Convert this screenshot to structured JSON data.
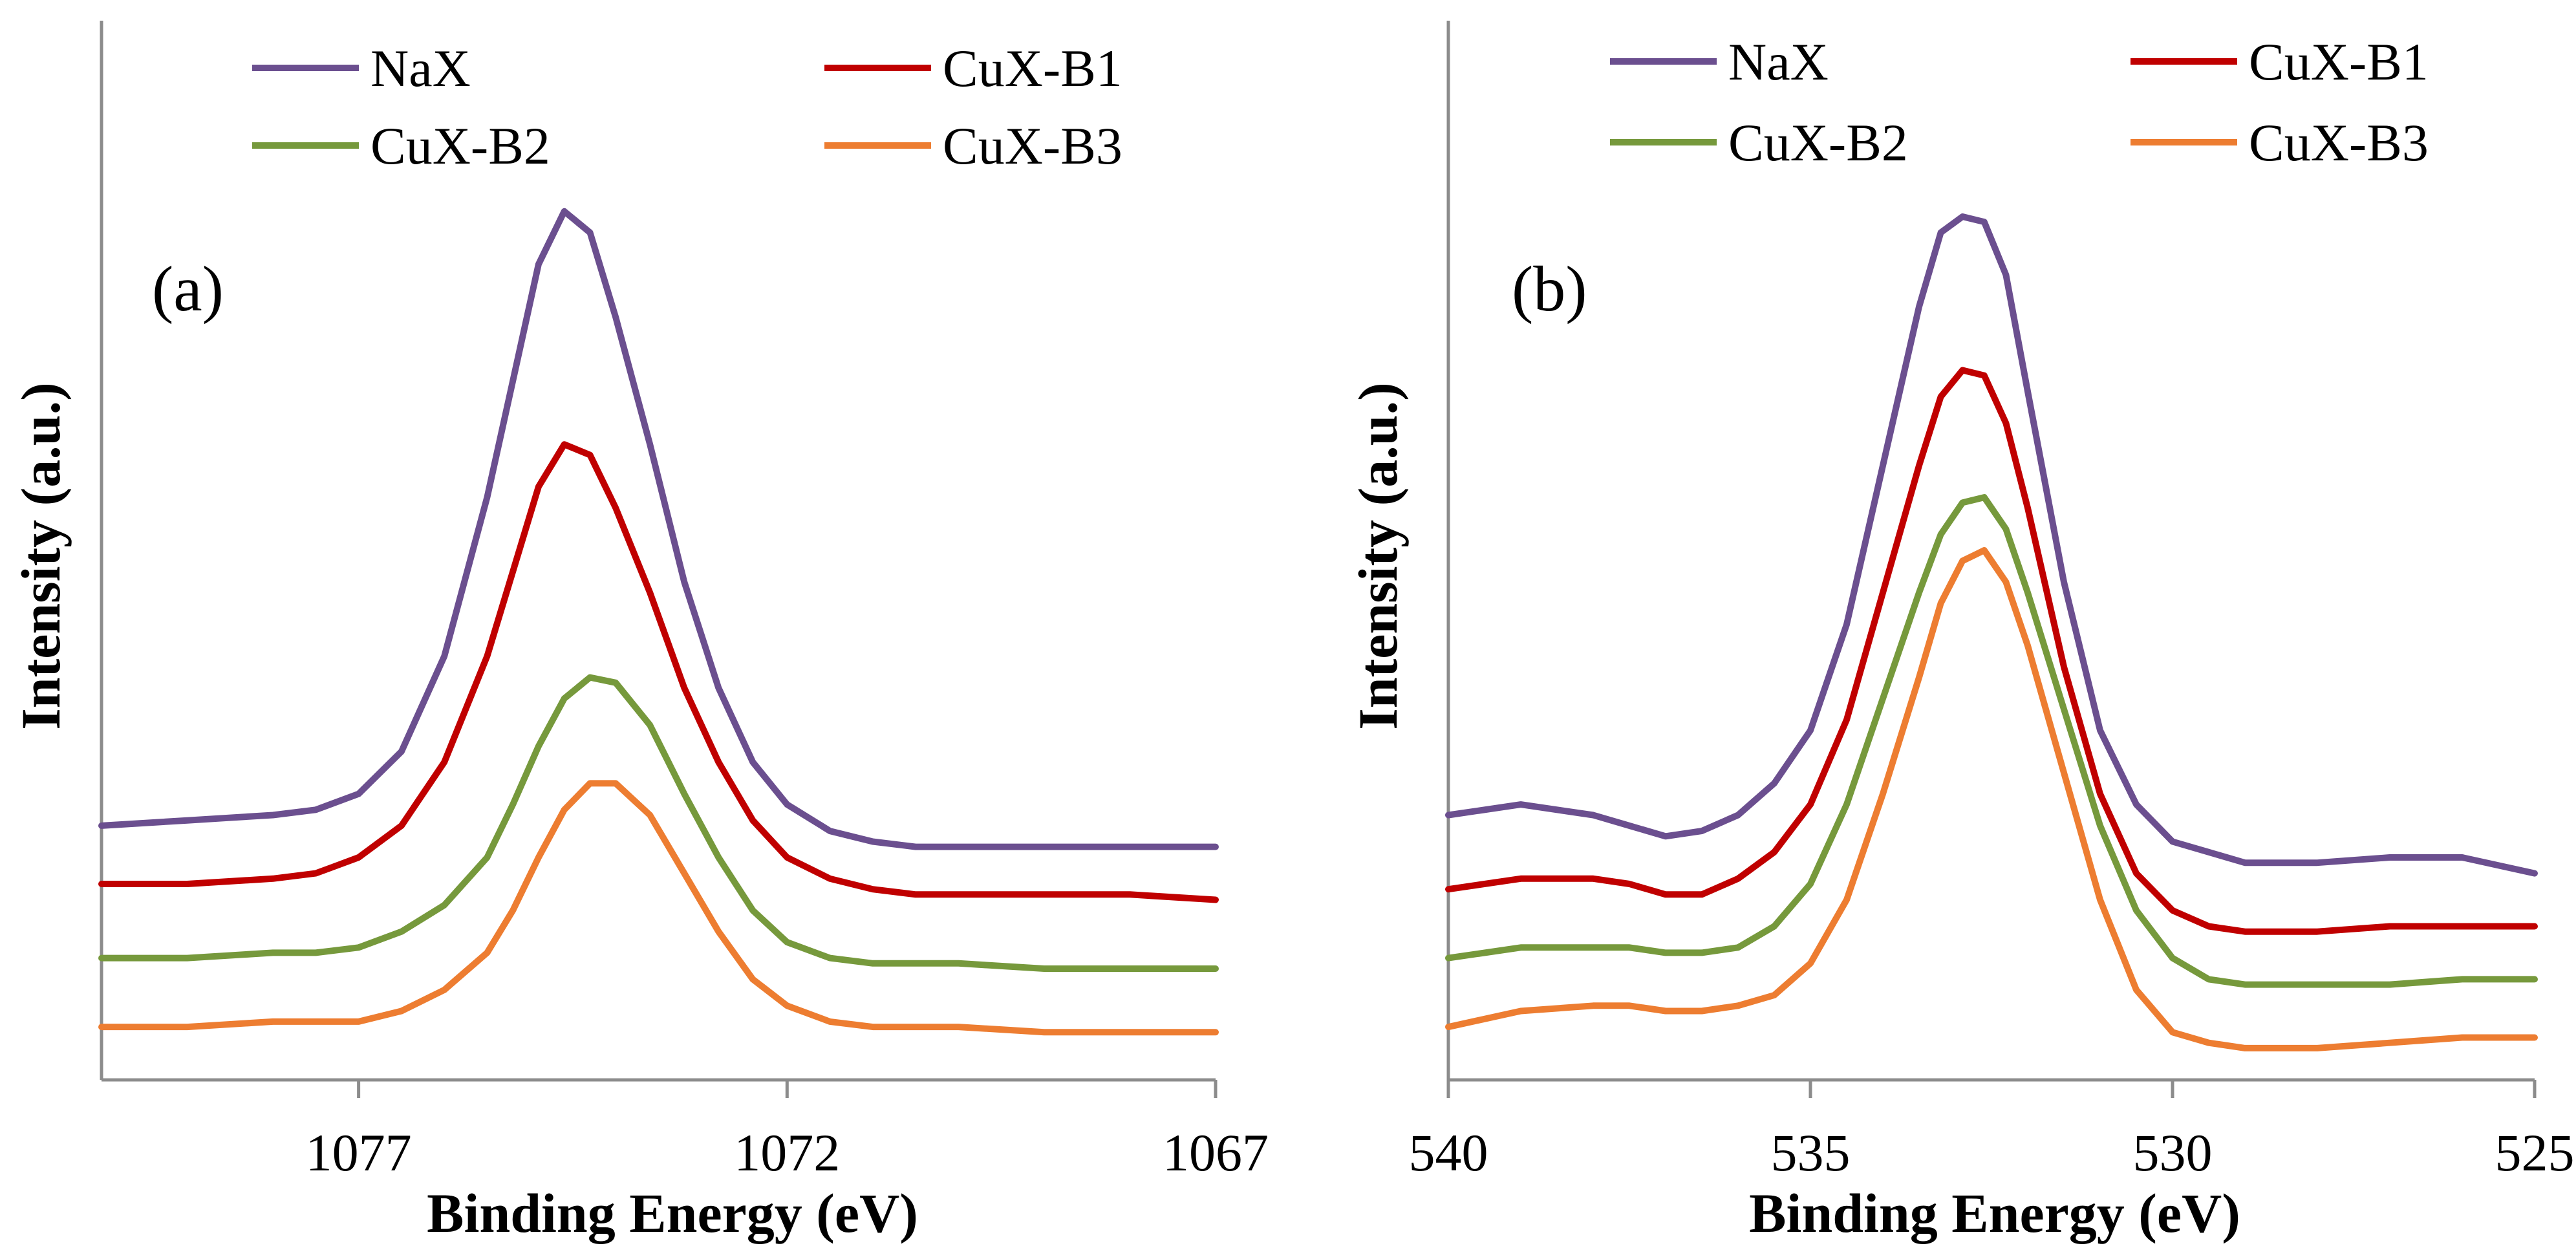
{
  "chart_data": [
    {
      "type": "line",
      "panel_label": "(a)",
      "xlabel": "Binding Energy (eV)",
      "ylabel": "Intensity (a.u.)",
      "xlim": [
        1080,
        1067
      ],
      "x_reversed": true,
      "ylim": [
        0,
        100
      ],
      "y_ticks_shown": false,
      "x_tick_values": [
        1077,
        1072,
        1067
      ],
      "x_tick_labels": [
        "1077",
        "1072",
        "1067"
      ],
      "legend": {
        "placement": "top",
        "columns": 2
      },
      "series": [
        {
          "name": "NaX",
          "color": "#6b4f8f",
          "x": [
            1080,
            1079,
            1078,
            1077.5,
            1077,
            1076.5,
            1076,
            1075.5,
            1075.2,
            1074.9,
            1074.6,
            1074.3,
            1074.0,
            1073.6,
            1073.2,
            1072.8,
            1072.4,
            1072.0,
            1071.5,
            1071.0,
            1070.5,
            1070,
            1069,
            1068,
            1067
          ],
          "y": [
            24,
            24.5,
            25,
            25.5,
            27,
            31,
            40,
            55,
            66,
            77,
            82,
            80,
            72,
            60,
            47,
            37,
            30,
            26,
            23.5,
            22.5,
            22,
            22,
            22,
            22,
            22
          ]
        },
        {
          "name": "CuX-B1",
          "color": "#c00000",
          "x": [
            1080,
            1079,
            1078,
            1077.5,
            1077,
            1076.5,
            1076,
            1075.5,
            1075.2,
            1074.9,
            1074.6,
            1074.3,
            1074.0,
            1073.6,
            1073.2,
            1072.8,
            1072.4,
            1072.0,
            1071.5,
            1071.0,
            1070.5,
            1070,
            1069,
            1068,
            1067
          ],
          "y": [
            18.5,
            18.5,
            19,
            19.5,
            21,
            24,
            30,
            40,
            48,
            56,
            60,
            59,
            54,
            46,
            37,
            30,
            24.5,
            21,
            19,
            18,
            17.5,
            17.5,
            17.5,
            17.5,
            17
          ]
        },
        {
          "name": "CuX-B2",
          "color": "#76993c",
          "x": [
            1080,
            1079,
            1078,
            1077.5,
            1077,
            1076.5,
            1076,
            1075.5,
            1075.2,
            1074.9,
            1074.6,
            1074.3,
            1074.0,
            1073.6,
            1073.2,
            1072.8,
            1072.4,
            1072.0,
            1071.5,
            1071.0,
            1070.5,
            1070,
            1069,
            1068,
            1067
          ],
          "y": [
            11.5,
            11.5,
            12,
            12,
            12.5,
            14,
            16.5,
            21,
            26,
            31.5,
            36,
            38,
            37.5,
            33.5,
            27,
            21,
            16,
            13,
            11.5,
            11,
            11,
            11,
            10.5,
            10.5,
            10.5
          ]
        },
        {
          "name": "CuX-B3",
          "color": "#ed7d31",
          "x": [
            1080,
            1079,
            1078,
            1077.5,
            1077,
            1076.5,
            1076,
            1075.5,
            1075.2,
            1074.9,
            1074.6,
            1074.3,
            1074.0,
            1073.6,
            1073.2,
            1072.8,
            1072.4,
            1072.0,
            1071.5,
            1071.0,
            1070.5,
            1070,
            1069,
            1068,
            1067
          ],
          "y": [
            5,
            5,
            5.5,
            5.5,
            5.5,
            6.5,
            8.5,
            12,
            16,
            21,
            25.5,
            28,
            28,
            25,
            19.5,
            14,
            9.5,
            7,
            5.5,
            5,
            5,
            5,
            4.5,
            4.5,
            4.5
          ]
        }
      ]
    },
    {
      "type": "line",
      "panel_label": "(b)",
      "xlabel": "Binding Energy (eV)",
      "ylabel": "Intensity (a.u.)",
      "xlim": [
        540,
        525
      ],
      "x_reversed": true,
      "ylim": [
        0,
        100
      ],
      "y_ticks_shown": false,
      "x_tick_values": [
        540,
        535,
        530,
        525
      ],
      "x_tick_labels": [
        "540",
        "535",
        "530",
        "525"
      ],
      "legend": {
        "placement": "top",
        "columns": 2
      },
      "series": [
        {
          "name": "NaX",
          "color": "#6b4f8f",
          "x": [
            540,
            539,
            538,
            537.5,
            537,
            536.5,
            536,
            535.5,
            535,
            534.5,
            534,
            533.5,
            533.2,
            532.9,
            532.6,
            532.3,
            532,
            531.5,
            531,
            530.5,
            530,
            529.5,
            529,
            528,
            527,
            526,
            525
          ],
          "y": [
            25,
            26,
            25,
            24,
            23,
            23.5,
            25,
            28,
            33,
            43,
            58,
            73,
            80,
            81.5,
            81,
            76,
            65,
            47,
            33,
            26,
            22.5,
            21.5,
            20.5,
            20.5,
            21,
            21,
            19.5
          ]
        },
        {
          "name": "CuX-B1",
          "color": "#c00000",
          "x": [
            540,
            539,
            538,
            537.5,
            537,
            536.5,
            536,
            535.5,
            535,
            534.5,
            534,
            533.5,
            533.2,
            532.9,
            532.6,
            532.3,
            532,
            531.5,
            531,
            530.5,
            530,
            529.5,
            529,
            528,
            527,
            526,
            525
          ],
          "y": [
            18,
            19,
            19,
            18.5,
            17.5,
            17.5,
            19,
            21.5,
            26,
            34,
            46,
            58,
            64.5,
            67,
            66.5,
            62,
            54,
            39,
            27,
            19.5,
            16,
            14.5,
            14,
            14,
            14.5,
            14.5,
            14.5
          ]
        },
        {
          "name": "CuX-B2",
          "color": "#76993c",
          "x": [
            540,
            539,
            538,
            537.5,
            537,
            536.5,
            536,
            535.5,
            535,
            534.5,
            534,
            533.5,
            533.2,
            532.9,
            532.6,
            532.3,
            532,
            531.5,
            531,
            530.5,
            530,
            529.5,
            529,
            528,
            527,
            526,
            525
          ],
          "y": [
            11.5,
            12.5,
            12.5,
            12.5,
            12,
            12,
            12.5,
            14.5,
            18.5,
            26,
            36,
            46,
            51.5,
            54.5,
            55,
            52,
            46,
            35,
            24,
            16,
            11.5,
            9.5,
            9,
            9,
            9,
            9.5,
            9.5
          ]
        },
        {
          "name": "CuX-B3",
          "color": "#ed7d31",
          "x": [
            540,
            539,
            538,
            537.5,
            537,
            536.5,
            536,
            535.5,
            535,
            534.5,
            534,
            533.5,
            533.2,
            532.9,
            532.6,
            532.3,
            532,
            531.5,
            531,
            530.5,
            530,
            529.5,
            529,
            528,
            527,
            526,
            525
          ],
          "y": [
            5,
            6.5,
            7,
            7,
            6.5,
            6.5,
            7,
            8,
            11,
            17,
            27,
            38,
            45,
            49,
            50,
            47,
            41,
            29,
            17,
            8.5,
            4.5,
            3.5,
            3,
            3,
            3.5,
            4,
            4
          ]
        }
      ]
    }
  ]
}
